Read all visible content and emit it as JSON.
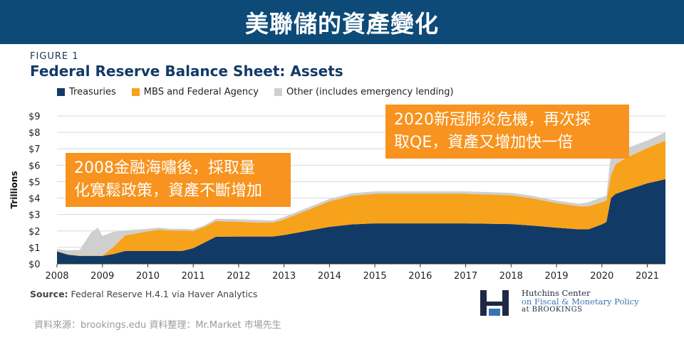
{
  "banner": {
    "title": "美聯儲的資產變化"
  },
  "figure": {
    "label": "FIGURE 1",
    "title": "Federal Reserve Balance Sheet: Assets"
  },
  "colors": {
    "banner": "#0d4a78",
    "treasuries": "#123a66",
    "mbs": "#f7a21b",
    "other": "#cfcfcf",
    "callout": "#f7931e"
  },
  "chart_data": {
    "type": "area",
    "stacked": true,
    "ylabel": "Trillions",
    "ylim": [
      0,
      9
    ],
    "y_ticks": [
      "$0",
      "$1",
      "$2",
      "$3",
      "$4",
      "$5",
      "$6",
      "$7",
      "$8",
      "$9"
    ],
    "x_ticks": [
      "2008",
      "2009",
      "2010",
      "2011",
      "2012",
      "2013",
      "2014",
      "2015",
      "2016",
      "2017",
      "2018",
      "2019",
      "2020",
      "2021"
    ],
    "grid": true,
    "legend": "top",
    "x": [
      2008.0,
      2008.25,
      2008.5,
      2008.75,
      2008.9,
      2009.0,
      2009.25,
      2009.5,
      2010.0,
      2010.25,
      2010.5,
      2010.75,
      2011.0,
      2011.25,
      2011.5,
      2012.0,
      2012.5,
      2012.75,
      2013.0,
      2013.5,
      2014.0,
      2014.5,
      2015.0,
      2016.0,
      2017.0,
      2018.0,
      2018.5,
      2019.0,
      2019.5,
      2019.7,
      2020.0,
      2020.1,
      2020.2,
      2020.3,
      2020.5,
      2021.0,
      2021.4
    ],
    "series": [
      {
        "name": "Treasuries",
        "values": [
          0.75,
          0.55,
          0.48,
          0.48,
          0.48,
          0.48,
          0.6,
          0.78,
          0.78,
          0.78,
          0.78,
          0.78,
          0.95,
          1.3,
          1.65,
          1.66,
          1.66,
          1.66,
          1.75,
          2.0,
          2.25,
          2.4,
          2.46,
          2.46,
          2.46,
          2.42,
          2.32,
          2.2,
          2.1,
          2.1,
          2.4,
          2.55,
          4.0,
          4.25,
          4.45,
          4.9,
          5.15
        ]
      },
      {
        "name": "MBS and Federal Agency",
        "values": [
          0.02,
          0.02,
          0.02,
          0.02,
          0.02,
          0.02,
          0.45,
          0.95,
          1.2,
          1.3,
          1.25,
          1.25,
          1.05,
          0.95,
          0.95,
          0.9,
          0.85,
          0.85,
          0.95,
          1.25,
          1.55,
          1.75,
          1.8,
          1.8,
          1.8,
          1.75,
          1.65,
          1.5,
          1.4,
          1.4,
          1.35,
          1.3,
          1.4,
          1.8,
          1.95,
          2.15,
          2.35
        ]
      },
      {
        "name": "Other (includes emergency lending)",
        "values": [
          0.12,
          0.25,
          0.35,
          1.4,
          1.7,
          1.2,
          0.9,
          0.3,
          0.15,
          0.12,
          0.1,
          0.1,
          0.1,
          0.1,
          0.15,
          0.15,
          0.15,
          0.12,
          0.15,
          0.15,
          0.15,
          0.15,
          0.15,
          0.15,
          0.15,
          0.15,
          0.15,
          0.15,
          0.15,
          0.25,
          0.3,
          0.3,
          1.3,
          0.9,
          0.6,
          0.45,
          0.5
        ]
      }
    ]
  },
  "callouts": {
    "a": [
      "2008金融海嘯後，採取量",
      "化寬鬆政策，資產不斷增加"
    ],
    "b": [
      "2020新冠肺炎危機，再次採",
      "取QE，資產又增加快一倍"
    ]
  },
  "source": {
    "label": "Source:",
    "text": "Federal Reserve H.4.1 via Haver Analytics"
  },
  "logo": {
    "line1": "Hutchins Center",
    "line2": "on Fiscal & Monetary Policy",
    "line3": "at BROOKINGS"
  },
  "credit": "資料來源：brookings.edu  資料整理：Mr.Market 市場先生"
}
